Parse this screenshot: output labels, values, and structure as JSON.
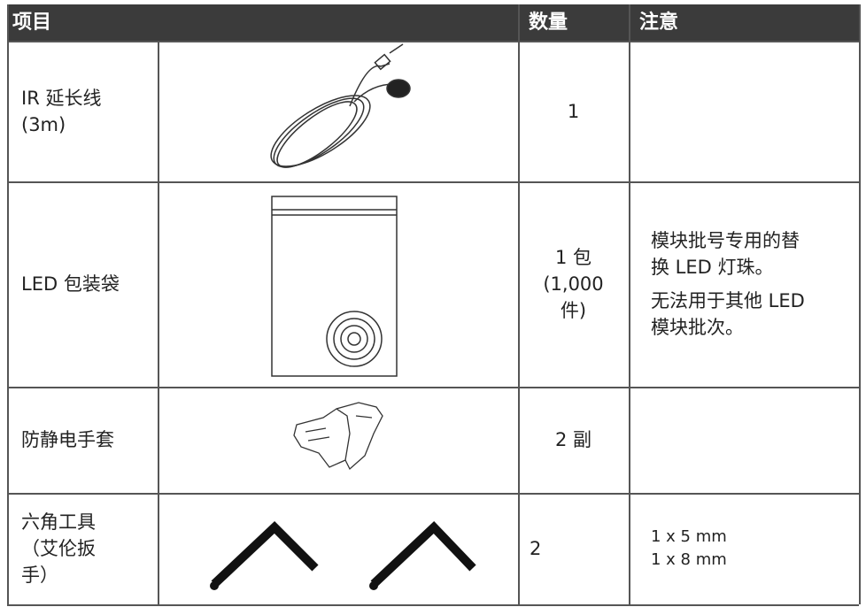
{
  "table": {
    "header": [
      "项目",
      "数量",
      "注意"
    ],
    "rows": [
      {
        "item": [
          "IR 延长线",
          "(3m)"
        ],
        "quantity": [
          "1"
        ],
        "notes": []
      },
      {
        "item": [
          "LED 包装袋"
        ],
        "quantity": [
          "1 包",
          "(1,000",
          "件)"
        ],
        "notes": [
          [
            "模块批号专用的替",
            "换 LED 灯珠。"
          ],
          [
            "无法用于其他 LED",
            "模块批次。"
          ]
        ]
      },
      {
        "item": [
          "防静电手套"
        ],
        "quantity": [
          "2 副"
        ],
        "notes": []
      },
      {
        "item": [
          "六角工具",
          "（艾伦扳",
          "手）"
        ],
        "quantity": [
          "2"
        ],
        "notes": [
          [
            "1 x 5 mm",
            "1 x 8 mm"
          ]
        ]
      }
    ]
  }
}
